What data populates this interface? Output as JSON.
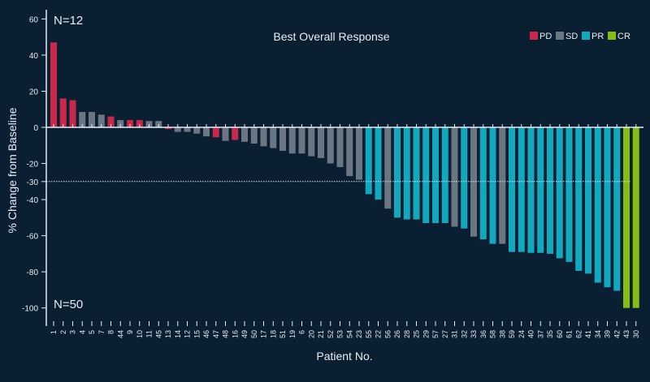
{
  "chart_data": {
    "type": "bar",
    "title": "Best Overall Response",
    "xlabel": "Patient No.",
    "ylabel": "% Change from Baseline",
    "ylim": [
      -100,
      60
    ],
    "yticks": [
      60,
      40,
      20,
      0,
      -20,
      -30,
      -40,
      -60,
      -80,
      -100
    ],
    "reference_line": -30,
    "annotations": {
      "top": "N=12",
      "bottom": "N=50"
    },
    "legend": {
      "placement": "top-right",
      "entries": [
        {
          "key": "PD",
          "label": "PD",
          "color": "#c8284a"
        },
        {
          "key": "SD",
          "label": "SD",
          "color": "#6b7683"
        },
        {
          "key": "PR",
          "label": "PR",
          "color": "#12a9bf"
        },
        {
          "key": "CR",
          "label": "CR",
          "color": "#86bd14"
        }
      ]
    },
    "categories": [
      "1",
      "2",
      "3",
      "4",
      "5",
      "7",
      "8",
      "44",
      "9",
      "10",
      "11",
      "45",
      "13",
      "14",
      "12",
      "15",
      "46",
      "47",
      "48",
      "16",
      "49",
      "50",
      "17",
      "18",
      "51",
      "19",
      "6",
      "20",
      "21",
      "52",
      "53",
      "54",
      "23",
      "55",
      "22",
      "56",
      "26",
      "28",
      "25",
      "29",
      "57",
      "27",
      "31",
      "32",
      "33",
      "36",
      "58",
      "38",
      "59",
      "24",
      "40",
      "37",
      "35",
      "60",
      "61",
      "62",
      "41",
      "34",
      "39",
      "42",
      "43",
      "30"
    ],
    "values": [
      47,
      16,
      15,
      8.5,
      8.5,
      7,
      6,
      4,
      4,
      4,
      3.5,
      3.5,
      -1,
      -2.5,
      -2.5,
      -3.5,
      -5,
      -5.5,
      -7.5,
      -7,
      -8,
      -9,
      -10.5,
      -11.5,
      -13,
      -14.5,
      -14.5,
      -16,
      -17,
      -20,
      -22,
      -27,
      -29,
      -37,
      -40,
      -45,
      -50,
      -51,
      -51,
      -53,
      -53,
      -53,
      -55,
      -56,
      -60.5,
      -62,
      -64.5,
      -64.5,
      -69,
      -69,
      -69.5,
      -69.5,
      -70,
      -72.5,
      -74.5,
      -79.5,
      -81,
      -86,
      -88.5,
      -90.5,
      -100,
      -100
    ],
    "response": [
      "PD",
      "PD",
      "PD",
      "SD",
      "SD",
      "SD",
      "PD",
      "SD",
      "PD",
      "PD",
      "SD",
      "SD",
      "PD",
      "SD",
      "SD",
      "SD",
      "SD",
      "PD",
      "SD",
      "PD",
      "SD",
      "SD",
      "SD",
      "SD",
      "SD",
      "SD",
      "SD",
      "SD",
      "SD",
      "SD",
      "SD",
      "SD",
      "SD",
      "PR",
      "PR",
      "SD",
      "PR",
      "PR",
      "PR",
      "PR",
      "PR",
      "PR",
      "SD",
      "PR",
      "SD",
      "PR",
      "PR",
      "SD",
      "PR",
      "PR",
      "PR",
      "PR",
      "PR",
      "PR",
      "PR",
      "PR",
      "PR",
      "PR",
      "PR",
      "PR",
      "CR",
      "CR"
    ]
  }
}
